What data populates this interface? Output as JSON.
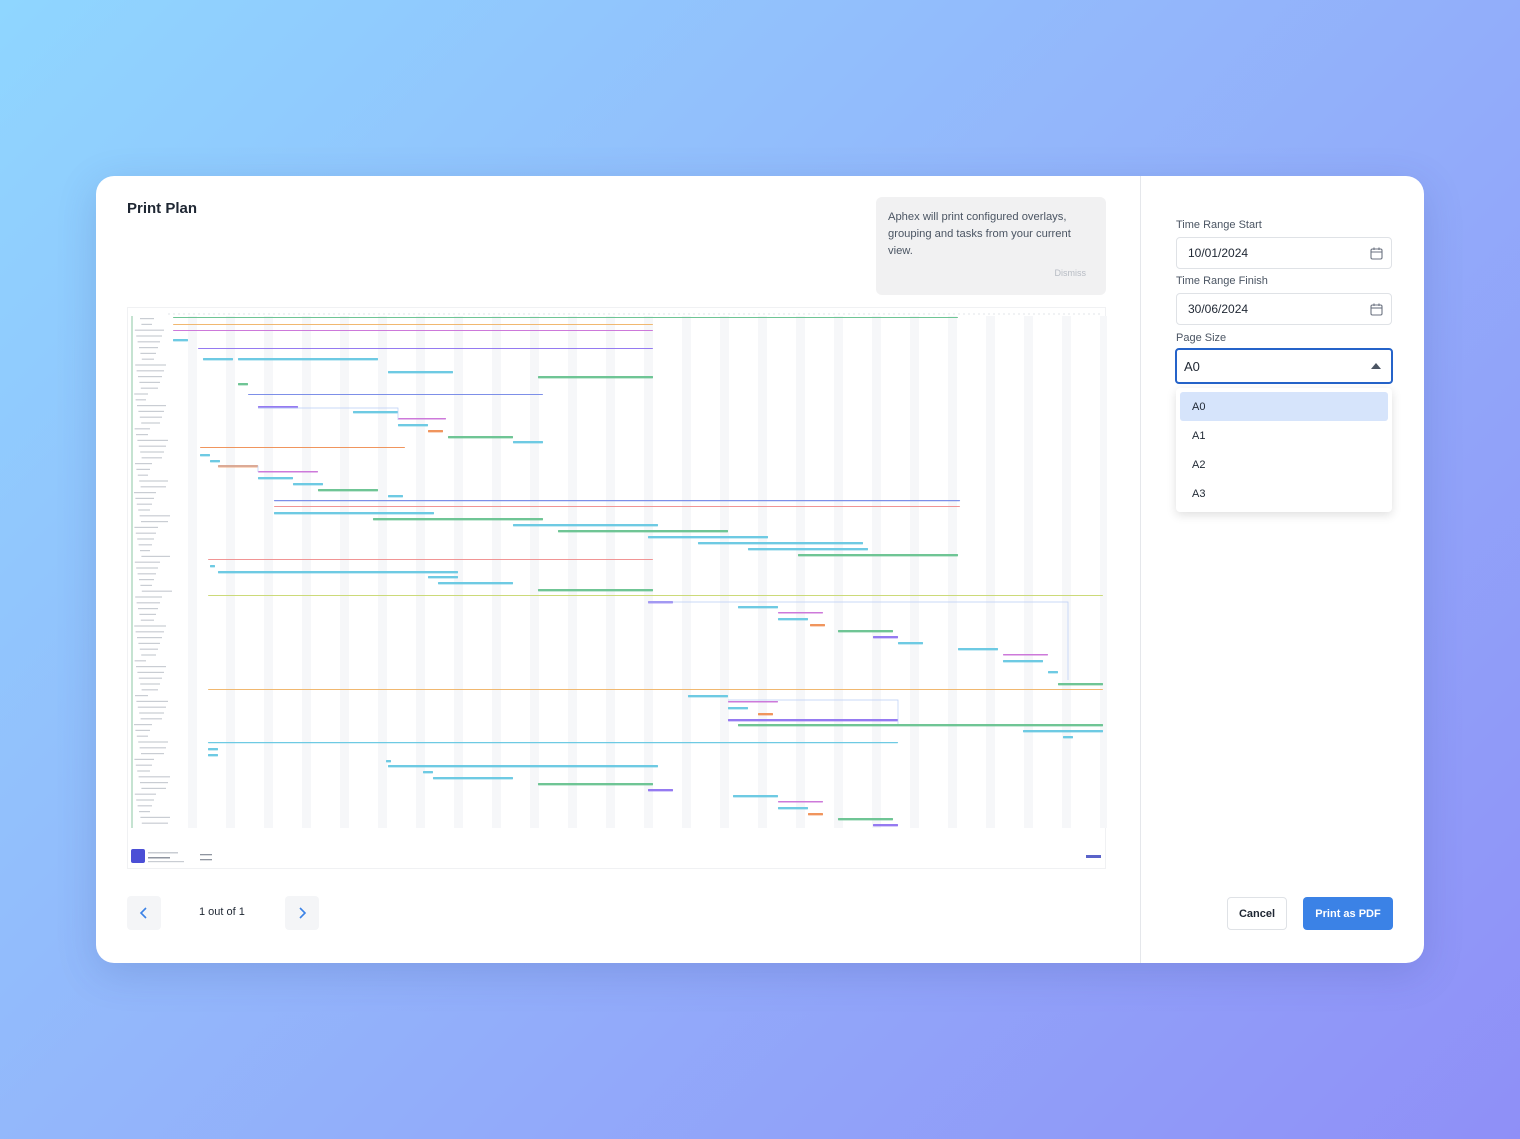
{
  "modal": {
    "title": "Print Plan",
    "notice": {
      "text": "Aphex will print configured overlays, grouping and tasks from your current view.",
      "dismiss": "Dismiss"
    }
  },
  "pager": {
    "status": "1 out of 1"
  },
  "settings": {
    "time_range_start": {
      "label": "Time Range Start",
      "value": "10/01/2024"
    },
    "time_range_finish": {
      "label": "Time Range Finish",
      "value": "30/06/2024"
    },
    "page_size": {
      "label": "Page Size",
      "value": "A0",
      "options": [
        "A0",
        "A1",
        "A2",
        "A3"
      ]
    }
  },
  "actions": {
    "cancel": "Cancel",
    "print": "Print as PDF"
  },
  "colors": {
    "primary": "#3b82e6",
    "select_border": "#2563c9",
    "option_highlight": "#d6e4fb"
  }
}
